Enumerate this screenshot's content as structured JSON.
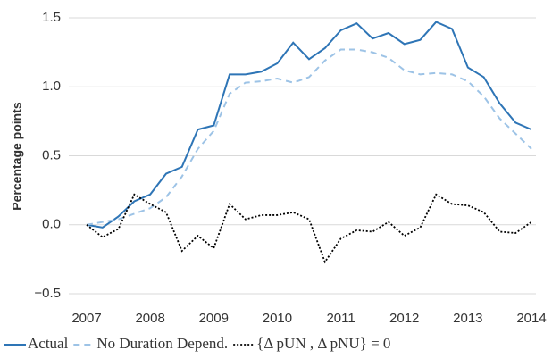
{
  "chart_data": {
    "type": "line",
    "ylabel": "Percentage points",
    "x": [
      2007,
      2007.25,
      2007.5,
      2007.75,
      2008,
      2008.25,
      2008.5,
      2008.75,
      2009,
      2009.25,
      2009.5,
      2009.75,
      2010,
      2010.25,
      2010.5,
      2010.75,
      2011,
      2011.25,
      2011.5,
      2011.75,
      2012,
      2012.25,
      2012.5,
      2012.75,
      2013,
      2013.25,
      2013.5,
      2013.75,
      2014
    ],
    "series": [
      {
        "name": "Actual",
        "color": "#2e75b6",
        "style": "solid",
        "values": [
          0,
          -0.02,
          0.06,
          0.17,
          0.22,
          0.37,
          0.42,
          0.69,
          0.72,
          1.09,
          1.09,
          1.11,
          1.17,
          1.32,
          1.2,
          1.28,
          1.41,
          1.46,
          1.35,
          1.39,
          1.31,
          1.34,
          1.47,
          1.42,
          1.14,
          1.07,
          0.88,
          0.74,
          0.69
        ]
      },
      {
        "name": "No Duration Depend.",
        "color": "#9dc3e6",
        "style": "dashed",
        "values": [
          0,
          0.02,
          0.04,
          0.08,
          0.12,
          0.2,
          0.35,
          0.55,
          0.68,
          0.95,
          1.03,
          1.04,
          1.06,
          1.03,
          1.07,
          1.19,
          1.27,
          1.27,
          1.25,
          1.21,
          1.12,
          1.09,
          1.1,
          1.09,
          1.04,
          0.93,
          0.77,
          0.66,
          0.55
        ]
      },
      {
        "name": "{Δ pUN , Δ pNU} = 0",
        "color": "#000000",
        "style": "dotted",
        "values": [
          0,
          -0.09,
          -0.03,
          0.22,
          0.15,
          0.09,
          -0.19,
          -0.08,
          -0.17,
          0.15,
          0.04,
          0.07,
          0.07,
          0.09,
          0.04,
          -0.27,
          -0.1,
          -0.04,
          -0.05,
          0.02,
          -0.08,
          -0.02,
          0.22,
          0.15,
          0.14,
          0.09,
          -0.05,
          -0.06,
          0.02
        ]
      }
    ],
    "xlim": [
      2007,
      2014
    ],
    "xticks": [
      2007,
      2008,
      2009,
      2010,
      2011,
      2012,
      2013,
      2014
    ],
    "ylim": [
      -0.5,
      1.5
    ],
    "yticks": [
      {
        "value": -0.5,
        "label": "−0.5"
      },
      {
        "value": 0,
        "label": "0.0"
      },
      0.5,
      {
        "value": 1,
        "label": "1.0"
      },
      1.5
    ],
    "grid": true,
    "legend": "bottom"
  }
}
